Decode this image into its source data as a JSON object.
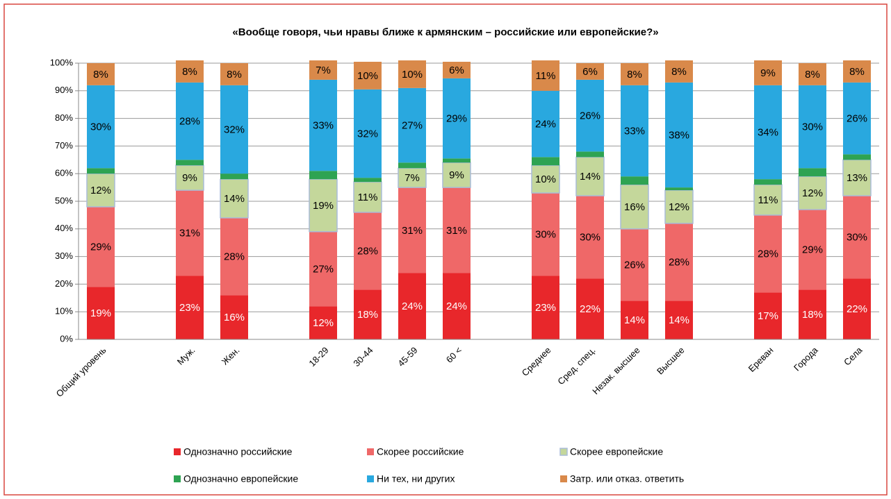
{
  "chart_data": {
    "type": "stacked_bar",
    "title": "«Вообще говоря, чьи нравы ближе к армянским – российские или европейские?»",
    "categories": [
      "Общий уровень",
      null,
      "Муж.",
      "Жен.",
      null,
      "18-29",
      "30-44",
      "45-59",
      "60 <",
      null,
      "Среднее",
      "Сред. спец.",
      "Незак. высшее",
      "Высшее",
      null,
      "Ереван",
      "Города",
      "Села"
    ],
    "ylim": [
      0,
      100
    ],
    "yticks": [
      {
        "value": 0,
        "label": "0%"
      },
      {
        "value": 10,
        "label": "10%"
      },
      {
        "value": 20,
        "label": "20%"
      },
      {
        "value": 30,
        "label": "30%"
      },
      {
        "value": 40,
        "label": "40%"
      },
      {
        "value": 50,
        "label": "50%"
      },
      {
        "value": 60,
        "label": "60%"
      },
      {
        "value": 70,
        "label": "70%"
      },
      {
        "value": 80,
        "label": "80%"
      },
      {
        "value": 90,
        "label": "90%"
      },
      {
        "value": 100,
        "label": "100%"
      }
    ],
    "grid": true,
    "series": [
      {
        "name": "Однозначно российские",
        "color": "#e8272b",
        "label_color": "#ffffff",
        "values": [
          19,
          null,
          23,
          16,
          null,
          12,
          18,
          24,
          24,
          null,
          23,
          22,
          14,
          14,
          null,
          17,
          18,
          22
        ],
        "value_labels": [
          "19%",
          null,
          "23%",
          "16%",
          null,
          "12%",
          "18%",
          "24%",
          "24%",
          null,
          "23%",
          "22%",
          "14%",
          "14%",
          null,
          "17%",
          "18%",
          "22%"
        ]
      },
      {
        "name": "Скорее российские",
        "color": "#ef6868",
        "label_color": "#000000",
        "values": [
          29,
          null,
          31,
          28,
          null,
          27,
          28,
          31,
          31,
          null,
          30,
          30,
          26,
          28,
          null,
          28,
          29,
          30
        ],
        "value_labels": [
          "29%",
          null,
          "31%",
          "28%",
          null,
          "27%",
          "28%",
          "31%",
          "31%",
          null,
          "30%",
          "30%",
          "26%",
          "28%",
          null,
          "28%",
          "29%",
          "30%"
        ]
      },
      {
        "name": "Скорее европейские",
        "color": "#c4d79b",
        "label_color": "#000000",
        "values": [
          12,
          null,
          9,
          14,
          null,
          19,
          11,
          7,
          9,
          null,
          10,
          14,
          16,
          12,
          null,
          11,
          12,
          13
        ],
        "value_labels": [
          "12%",
          null,
          "9%",
          "14%",
          null,
          "19%",
          "11%",
          "7%",
          "9%",
          null,
          "10%",
          "14%",
          "16%",
          "12%",
          null,
          "11%",
          "12%",
          "13%"
        ]
      },
      {
        "name": "Однозначно европейские",
        "color": "#2ea352",
        "values": [
          2,
          null,
          2,
          2,
          null,
          3,
          1.5,
          2,
          1.5,
          null,
          3,
          2,
          3,
          1,
          null,
          2,
          3,
          2
        ]
      },
      {
        "name": "Ни тех, ни других",
        "color": "#29a8df",
        "label_color": "#000000",
        "values": [
          30,
          null,
          28,
          32,
          null,
          33,
          32,
          27,
          29,
          null,
          24,
          26,
          33,
          38,
          null,
          34,
          30,
          26
        ],
        "value_labels": [
          "30%",
          null,
          "28%",
          "32%",
          null,
          "33%",
          "32%",
          "27%",
          "29%",
          null,
          "24%",
          "26%",
          "33%",
          "38%",
          null,
          "34%",
          "30%",
          "26%"
        ]
      },
      {
        "name": "Затр. или отказ. ответить",
        "color": "#d9894a",
        "label_color": "#000000",
        "values": [
          8,
          null,
          8,
          8,
          null,
          7,
          10,
          10,
          6,
          null,
          11,
          6,
          8,
          8,
          null,
          9,
          8,
          8
        ],
        "value_labels": [
          "8%",
          null,
          "8%",
          "8%",
          null,
          "7%",
          "10%",
          "10%",
          "6%",
          null,
          "11%",
          "6%",
          "8%",
          "8%",
          null,
          "9%",
          "8%",
          "8%"
        ]
      }
    ]
  }
}
